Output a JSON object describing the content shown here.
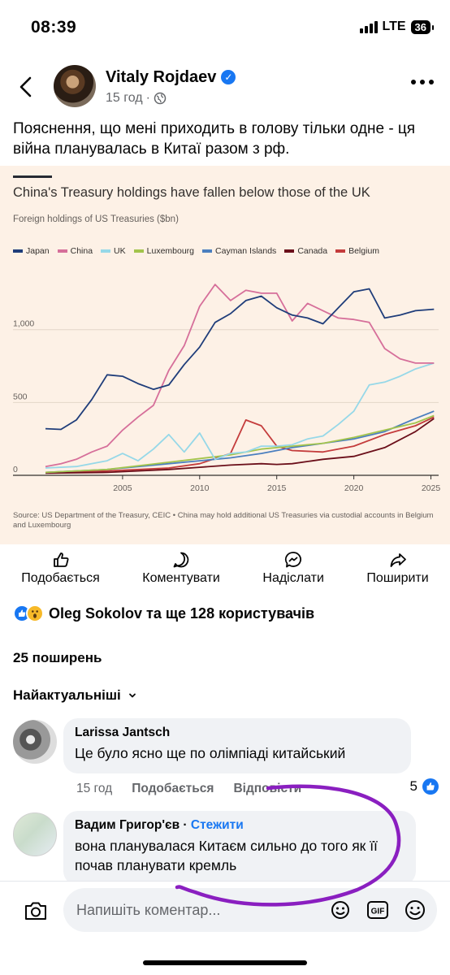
{
  "status": {
    "time": "08:39",
    "network": "LTE",
    "battery": "36"
  },
  "post": {
    "author": "Vitaly Rojdaev",
    "time_ago": "15 год",
    "text": "Пояснення, що мені приходить в голову тільки одне - ця війна планувалась в Китаї разом з рф."
  },
  "chart_data": {
    "type": "line",
    "title": "China's Treasury holdings have fallen below those of the UK",
    "subtitle": "Foreign holdings of US Treasuries ($bn)",
    "source": "Source: US Department of the Treasury, CEIC • China may hold additional US Treasuries via custodial accounts in Belgium and Luxembourg",
    "xlim": [
      2000,
      2025.5
    ],
    "ylim": [
      0,
      1400
    ],
    "x_ticks": [
      "2005",
      "2010",
      "2015",
      "2020",
      "2025"
    ],
    "y_ticks": [
      "0",
      "500",
      "1,000"
    ],
    "legend_placement": "top-left",
    "series": [
      {
        "name": "Japan",
        "color": "#1f3d7a",
        "x": [
          2000,
          2001,
          2002,
          2003,
          2004,
          2005,
          2006,
          2007,
          2008,
          2009,
          2010,
          2011,
          2012,
          2013,
          2014,
          2015,
          2016,
          2017,
          2018,
          2019,
          2020,
          2021,
          2022,
          2023,
          2024,
          2025.2
        ],
        "y": [
          320,
          315,
          380,
          520,
          690,
          680,
          630,
          590,
          620,
          760,
          880,
          1050,
          1110,
          1200,
          1230,
          1150,
          1100,
          1080,
          1040,
          1150,
          1260,
          1280,
          1080,
          1100,
          1130,
          1140
        ]
      },
      {
        "name": "China",
        "color": "#d66f9a",
        "x": [
          2000,
          2001,
          2002,
          2003,
          2004,
          2005,
          2006,
          2007,
          2008,
          2009,
          2010,
          2011,
          2012,
          2013,
          2014,
          2015,
          2016,
          2017,
          2018,
          2019,
          2020,
          2021,
          2022,
          2023,
          2024,
          2025.2
        ],
        "y": [
          60,
          80,
          110,
          160,
          200,
          310,
          400,
          480,
          720,
          890,
          1160,
          1310,
          1200,
          1270,
          1250,
          1250,
          1060,
          1180,
          1130,
          1080,
          1070,
          1050,
          870,
          800,
          770,
          770
        ]
      },
      {
        "name": "UK",
        "color": "#96d8e8",
        "x": [
          2000,
          2002,
          2004,
          2005,
          2006,
          2007,
          2008,
          2009,
          2010,
          2011,
          2012,
          2013,
          2014,
          2015,
          2016,
          2017,
          2018,
          2019,
          2020,
          2021,
          2022,
          2023,
          2024,
          2025.2
        ],
        "y": [
          50,
          60,
          100,
          150,
          100,
          180,
          280,
          160,
          290,
          110,
          150,
          160,
          200,
          200,
          210,
          250,
          270,
          350,
          440,
          620,
          640,
          680,
          730,
          770
        ]
      },
      {
        "name": "Luxembourg",
        "color": "#a3c44c",
        "x": [
          2000,
          2004,
          2008,
          2012,
          2014,
          2016,
          2018,
          2020,
          2022,
          2024,
          2025.2
        ],
        "y": [
          20,
          40,
          90,
          140,
          180,
          200,
          220,
          260,
          310,
          360,
          410
        ]
      },
      {
        "name": "Cayman Islands",
        "color": "#4b7fbf",
        "x": [
          2000,
          2004,
          2008,
          2012,
          2014,
          2016,
          2018,
          2020,
          2022,
          2024,
          2025.2
        ],
        "y": [
          20,
          40,
          80,
          120,
          150,
          190,
          220,
          250,
          300,
          390,
          440
        ]
      },
      {
        "name": "Canada",
        "color": "#6b0f1a",
        "x": [
          2000,
          2004,
          2008,
          2010,
          2012,
          2014,
          2015,
          2016,
          2018,
          2020,
          2022,
          2024,
          2025.2
        ],
        "y": [
          15,
          20,
          40,
          55,
          70,
          80,
          75,
          80,
          110,
          130,
          190,
          300,
          390
        ]
      },
      {
        "name": "Belgium",
        "color": "#c43c3c",
        "x": [
          2000,
          2004,
          2008,
          2010,
          2012,
          2013,
          2014,
          2015,
          2016,
          2018,
          2020,
          2022,
          2024,
          2025.2
        ],
        "y": [
          20,
          30,
          50,
          80,
          150,
          380,
          340,
          200,
          170,
          160,
          200,
          280,
          340,
          400
        ]
      }
    ]
  },
  "actions": {
    "like": "Подобається",
    "comment": "Коментувати",
    "send": "Надіслати",
    "share": "Поширити"
  },
  "reactions": {
    "summary": "Oleg Sokolov та ще 128 користувачів"
  },
  "shares": "25 поширень",
  "sort": {
    "label": "Найактуальніші"
  },
  "comments": [
    {
      "name": "Larissa  Jantsch",
      "text": "Це було ясно ще по олімпіаді китайський",
      "time_ago": "15 год",
      "like": "Подобається",
      "reply": "Відповісти",
      "likes": "5"
    },
    {
      "name": "Вадим Григор'єв",
      "follow": "Стежити",
      "text": "вона планувалася Китаєм сильно до того як її почав планувати кремль"
    }
  ],
  "composer": {
    "placeholder": "Напишіть коментар..."
  }
}
